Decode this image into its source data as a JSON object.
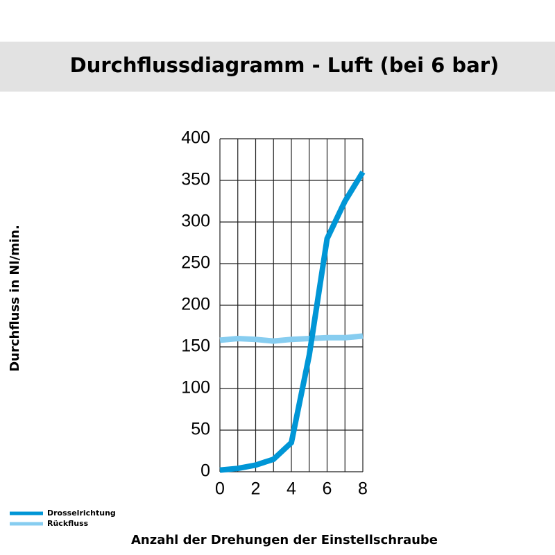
{
  "chart_data": {
    "type": "line",
    "title": "Durchflussdiagramm - Luft (bei 6 bar)",
    "y_label": "Durchfluss in Nl/min.",
    "x_label": "Anzahl der Drehungen der Einstellschraube",
    "x": [
      0,
      1,
      2,
      3,
      4,
      5,
      6,
      7,
      8
    ],
    "series": [
      {
        "name": "Drosselrichtung",
        "color": "#0096d6",
        "values": [
          2,
          4,
          8,
          15,
          35,
          140,
          280,
          325,
          360
        ]
      },
      {
        "name": "Rückfluss",
        "color": "#87cdf0",
        "values": [
          158,
          160,
          159,
          157,
          159,
          160,
          161,
          161,
          163
        ]
      }
    ],
    "xlim": [
      0,
      8
    ],
    "xticks": [
      0,
      2,
      4,
      6,
      8
    ],
    "xminor_ticks": [
      1,
      3,
      5,
      7
    ],
    "ylim": [
      0,
      400
    ],
    "yticks": [
      0,
      50,
      100,
      150,
      200,
      250,
      300,
      350,
      400
    ],
    "grid": true,
    "legend": "bottom-left"
  }
}
